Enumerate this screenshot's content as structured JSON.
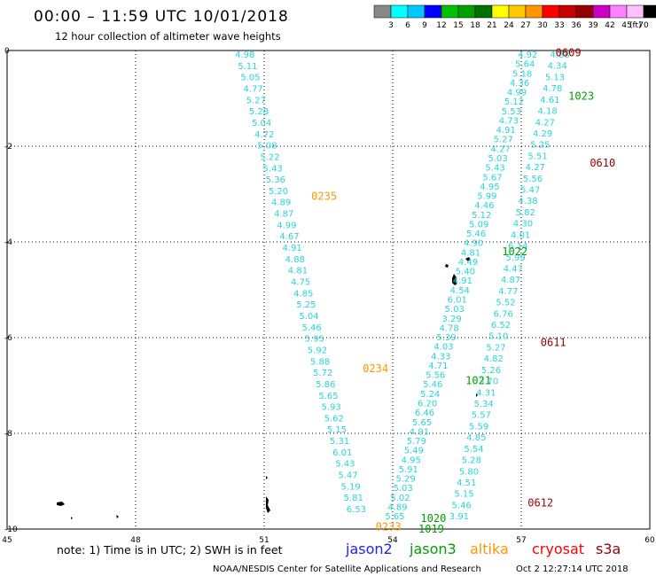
{
  "header": {
    "title": "00:00 – 11:59 UTC 10/01/2018",
    "subtitle": "12 hour collection of altimeter wave heights"
  },
  "colorbar": {
    "labels": [
      "3",
      "6",
      "9",
      "12",
      "15",
      "18",
      "21",
      "24",
      "27",
      "30",
      "33",
      "36",
      "39",
      "42",
      "45",
      "70"
    ],
    "unit": "(ft)",
    "colors": [
      "#888888",
      "#00ffff",
      "#00c8ff",
      "#0000ff",
      "#00c000",
      "#00a000",
      "#007000",
      "#ffff00",
      "#ffc800",
      "#ff9600",
      "#ff0000",
      "#c80000",
      "#960000",
      "#c800c8",
      "#ff80ff",
      "#ffc0ff",
      "#000000"
    ]
  },
  "notes": {
    "note": "note: 1) Time is in UTC; 2) SWH is in feet",
    "footer_left": "NOAA/NESDIS Center for Satellite Applications and Research",
    "footer_right": "Oct  2 12:27:14 UTC 2018"
  },
  "missions": [
    {
      "name": "jason2",
      "color": "#2020ff"
    },
    {
      "name": "jason3",
      "color": "#00a000"
    },
    {
      "name": "altika",
      "color": "#ff9600"
    },
    {
      "name": "cryosat",
      "color": "#ff0000"
    },
    {
      "name": "s3a",
      "color": "#960000"
    }
  ],
  "chart_data": {
    "type": "scatter",
    "title": "00:00 – 11:59 UTC 10/01/2018",
    "subtitle": "12 hour collection of altimeter wave heights",
    "xlim": [
      45,
      60
    ],
    "ylim": [
      -10,
      0
    ],
    "x_ticks": [
      "45",
      "48",
      "51",
      "54",
      "57",
      "60"
    ],
    "y_ticks": [
      "0",
      "-2",
      "-4",
      "-6",
      "-8",
      "-10"
    ],
    "value_color": "#27d4dc",
    "tracks": [
      {
        "name": "altika-track-left",
        "start": [
          50.55,
          0.0
        ],
        "end": [
          53.15,
          -9.5
        ],
        "values": [
          "4.98",
          "5.11",
          "5.05",
          "4.77",
          "5.27",
          "5.28",
          "5.04",
          "4.72",
          "5.08",
          "5.22",
          "5.43",
          "5.36",
          "5.20",
          "4.89",
          "4.87",
          "4.99",
          "4.67",
          "4.91",
          "4.88",
          "4.81",
          "4.75",
          "4.85",
          "5.25",
          "5.04",
          "5.46",
          "5.95",
          "5.92",
          "5.88",
          "5.72",
          "5.86",
          "5.65",
          "5.93",
          "5.62",
          "5.15",
          "5.31",
          "6.01",
          "5.43",
          "5.47",
          "5.19",
          "5.81",
          "6.53"
        ]
      },
      {
        "name": "ascending-track-middle",
        "start": [
          57.15,
          0.0
        ],
        "end": [
          54.05,
          -9.65
        ],
        "values": [
          "4.92",
          "5.64",
          "5.18",
          "4.36",
          "4.99",
          "5.12",
          "5.53",
          "4.73",
          "4.91",
          "5.27",
          "4.27",
          "5.03",
          "5.43",
          "5.67",
          "4.95",
          "5.99",
          "4.46",
          "5.12",
          "5.09",
          "5.46",
          "4.90",
          "4.81",
          "4.49",
          "5.40",
          "4.91",
          "4.54",
          "6.01",
          "5.03",
          "3.29",
          "4.78",
          "5.39",
          "4.03",
          "4.33",
          "4.71",
          "5.56",
          "5.46",
          "5.24",
          "6.20",
          "6.46",
          "5.65",
          "4.91",
          "5.79",
          "5.49",
          "4.95",
          "5.91",
          "5.29",
          "5.03",
          "5.02",
          "4.89",
          "5.65"
        ]
      },
      {
        "name": "ascending-track-right",
        "start": [
          57.9,
          0.0
        ],
        "end": [
          55.55,
          -9.65
        ],
        "values": [
          "4.88",
          "4.34",
          "5.13",
          "4.78",
          "4.61",
          "4.18",
          "4.27",
          "4.29",
          "5.25",
          "5.51",
          "4.27",
          "5.56",
          "5.47",
          "4.38",
          "5.82",
          "4.30",
          "4.01",
          "6.14",
          "5.99",
          "4.47",
          "4.87",
          "4.77",
          "5.52",
          "6.76",
          "6.52",
          "5.10",
          "5.27",
          "4.82",
          "5.26",
          "3.70",
          "4.31",
          "5.34",
          "5.57",
          "5.59",
          "4.85",
          "5.54",
          "5.28",
          "5.80",
          "4.51",
          "5.15",
          "5.46",
          "3.91"
        ]
      }
    ],
    "pass_labels": [
      {
        "text": "0609",
        "mission": "s3a",
        "color": "#960000",
        "x": 57.8,
        "y": -0.05
      },
      {
        "text": "1023",
        "mission": "jason3",
        "color": "#00a000",
        "x": 58.1,
        "y": -0.95
      },
      {
        "text": "0610",
        "mission": "s3a",
        "color": "#960000",
        "x": 58.6,
        "y": -2.35
      },
      {
        "text": "0235",
        "mission": "altika",
        "color": "#ff9600",
        "x": 52.1,
        "y": -3.05
      },
      {
        "text": "1022",
        "mission": "jason3",
        "color": "#00a000",
        "x": 56.55,
        "y": -4.2
      },
      {
        "text": "0611",
        "mission": "s3a",
        "color": "#960000",
        "x": 57.45,
        "y": -6.1
      },
      {
        "text": "0234",
        "mission": "altika",
        "color": "#ff9600",
        "x": 53.3,
        "y": -6.65
      },
      {
        "text": "1021",
        "mission": "jason3",
        "color": "#00a000",
        "x": 55.7,
        "y": -6.9
      },
      {
        "text": "0612",
        "mission": "s3a",
        "color": "#960000",
        "x": 57.15,
        "y": -9.45
      },
      {
        "text": "1020",
        "mission": "jason3",
        "color": "#00a000",
        "x": 54.65,
        "y": -9.78
      },
      {
        "text": "0233",
        "mission": "altika",
        "color": "#ff9600",
        "x": 53.6,
        "y": -9.95
      },
      {
        "text": "1019",
        "mission": "jason3",
        "color": "#00a000",
        "x": 54.6,
        "y": -10.0
      }
    ]
  }
}
